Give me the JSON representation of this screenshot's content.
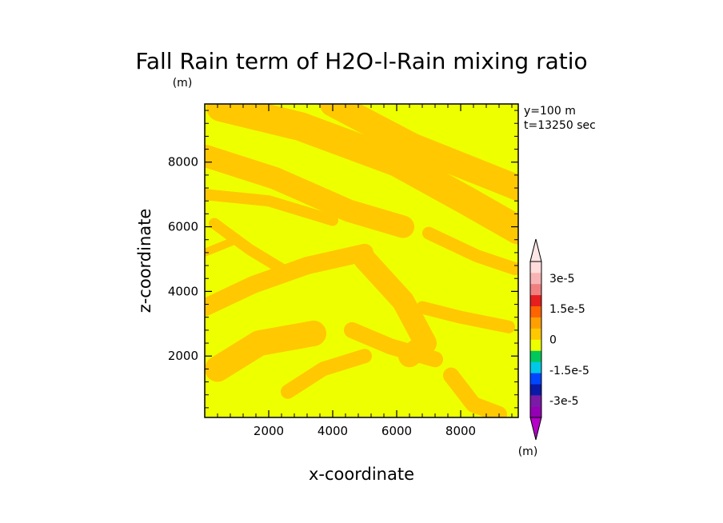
{
  "chart_data": {
    "type": "heatmap",
    "title": "Fall Rain term of H2O-l-Rain mixing ratio",
    "title_unit": "(m)",
    "xlabel": "x-coordinate",
    "ylabel": "z-coordinate",
    "info": [
      "y=100 m",
      "t=13250 sec"
    ],
    "xlim": [
      0,
      9800
    ],
    "ylim": [
      100,
      9800
    ],
    "x_ticks": [
      2000,
      4000,
      6000,
      8000
    ],
    "y_ticks": [
      2000,
      4000,
      6000,
      8000
    ],
    "background_level_color": "#eeff00",
    "anomaly_level_color": "#ffc800",
    "colorbar": {
      "unit": "(m)",
      "levels": [
        -3e-05,
        -2.25e-05,
        -1.5e-05,
        -7.5e-06,
        0,
        7.5e-06,
        1.5e-05,
        2.25e-05,
        3e-05
      ],
      "tick_labels": [
        "-3e-5",
        "-1.5e-5",
        "0",
        "1.5e-5",
        "3e-5"
      ],
      "tick_values": [
        -3e-05,
        -1.5e-05,
        0,
        1.5e-05,
        3e-05
      ],
      "colors": [
        "#9400b4",
        "#7a1aa6",
        "#0a1aa6",
        "#0046ff",
        "#00c8e6",
        "#00c85a",
        "#eeff00",
        "#ffc800",
        "#ffa000",
        "#ff6400",
        "#e61e1e",
        "#f08080",
        "#f8b4b4",
        "#ffdcdc"
      ],
      "under_color": "#b400c8",
      "over_color": "#ffe6e6"
    },
    "bands": [
      {
        "points": [
          [
            500,
            9700
          ],
          [
            3000,
            9100
          ],
          [
            6000,
            8000
          ],
          [
            8200,
            6800
          ],
          [
            9800,
            5900
          ]
        ],
        "width": 900
      },
      {
        "points": [
          [
            4000,
            9800
          ],
          [
            6500,
            8500
          ],
          [
            9800,
            7200
          ]
        ],
        "width": 800
      },
      {
        "points": [
          [
            0,
            8200
          ],
          [
            2200,
            7500
          ],
          [
            4500,
            6500
          ],
          [
            6200,
            6000
          ]
        ],
        "width": 700
      },
      {
        "points": [
          [
            0,
            7000
          ],
          [
            2000,
            6800
          ],
          [
            4000,
            6200
          ]
        ],
        "width": 350
      },
      {
        "points": [
          [
            0,
            3500
          ],
          [
            1500,
            4200
          ],
          [
            3200,
            4800
          ],
          [
            5000,
            5200
          ]
        ],
        "width": 550
      },
      {
        "points": [
          [
            5000,
            5000
          ],
          [
            6200,
            3700
          ],
          [
            6900,
            2400
          ],
          [
            6400,
            2000
          ]
        ],
        "width": 700
      },
      {
        "points": [
          [
            4600,
            2800
          ],
          [
            5800,
            2300
          ],
          [
            7200,
            1900
          ]
        ],
        "width": 500
      },
      {
        "points": [
          [
            400,
            1600
          ],
          [
            1700,
            2400
          ],
          [
            3400,
            2700
          ]
        ],
        "width": 800
      },
      {
        "points": [
          [
            2600,
            900
          ],
          [
            3700,
            1600
          ],
          [
            5000,
            2000
          ]
        ],
        "width": 450
      },
      {
        "points": [
          [
            7700,
            1400
          ],
          [
            8400,
            500
          ],
          [
            9200,
            200
          ]
        ],
        "width": 500
      },
      {
        "points": [
          [
            6800,
            3500
          ],
          [
            8000,
            3200
          ],
          [
            9500,
            2900
          ]
        ],
        "width": 400
      },
      {
        "points": [
          [
            300,
            6100
          ],
          [
            1400,
            5300
          ],
          [
            2400,
            4700
          ]
        ],
        "width": 350
      },
      {
        "points": [
          [
            7000,
            5800
          ],
          [
            8500,
            5100
          ],
          [
            9700,
            4700
          ]
        ],
        "width": 400
      },
      {
        "points": [
          [
            0,
            5200
          ],
          [
            1000,
            5600
          ]
        ],
        "width": 250
      }
    ]
  }
}
